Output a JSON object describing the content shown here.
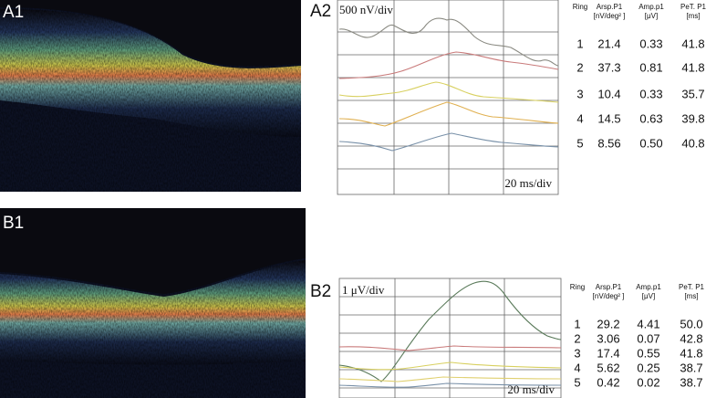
{
  "a1": {
    "label": "A1"
  },
  "a2": {
    "label": "A2",
    "scale_y": "500 nV/div",
    "scale_x": "20 ms/div"
  },
  "table_a": {
    "header": [
      [
        "Ring"
      ],
      [
        "Arsp.P1",
        "[nV/deg² ]"
      ],
      [
        "Amp.p1",
        "[μV]"
      ],
      [
        "PeT. P1",
        "[ms]"
      ]
    ],
    "rows": [
      [
        "1",
        "21.4",
        "0.33",
        "41.8"
      ],
      [
        "2",
        "37.3",
        "0.81",
        "41.8"
      ],
      [
        "3",
        "10.4",
        "0.33",
        "35.7"
      ],
      [
        "4",
        "14.5",
        "0.63",
        "39.8"
      ],
      [
        "5",
        "8.56",
        "0.50",
        "40.8"
      ]
    ]
  },
  "b1": {
    "label": "B1"
  },
  "b2": {
    "label": "B2",
    "scale_y": "1 μV/div",
    "scale_x": "20 ms/div"
  },
  "table_b": {
    "header": [
      [
        "Ring"
      ],
      [
        "Arsp.P1",
        "[nV/deg² ]"
      ],
      [
        "Amp.p1",
        "[μV]"
      ],
      [
        "PeT. P1",
        "[ms]"
      ]
    ],
    "rows": [
      [
        "1",
        "29.2",
        "4.41",
        "50.0"
      ],
      [
        "2",
        "3.06",
        "0.07",
        "42.8"
      ],
      [
        "3",
        "17.4",
        "0.55",
        "41.8"
      ],
      [
        "4",
        "5.62",
        "0.25",
        "38.7"
      ],
      [
        "5",
        "0.42",
        "0.02",
        "38.7"
      ]
    ]
  }
}
